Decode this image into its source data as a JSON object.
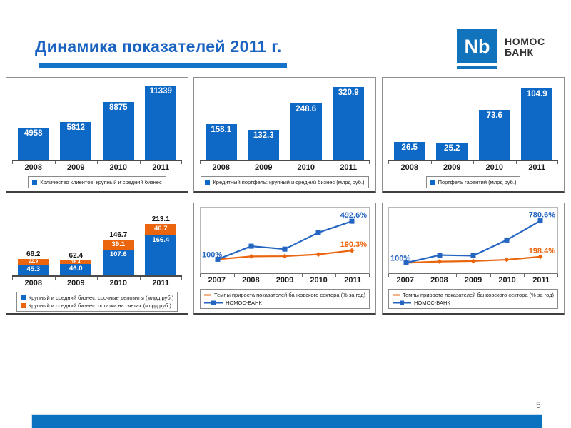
{
  "slide": {
    "title": "Динамика показателей 2011 г.",
    "page_number": "5",
    "logo": {
      "monogram": "Nb",
      "bank_name_line1": "НОМОС",
      "bank_name_line2": "БАНК"
    },
    "colors": {
      "series_blue": "#0E68C6",
      "series_orange": "#EA650D",
      "line_blue": "#2465C2",
      "title_blue": "#1A63C0",
      "underline_blue": "#1273C8",
      "footer_blue": "#0A72BE",
      "logo_blue": "#1173BC"
    }
  },
  "chart_data": [
    {
      "type": "bar",
      "categories": [
        "2008",
        "2009",
        "2010",
        "2011"
      ],
      "values": [
        "4958",
        "5812",
        "8875",
        "11339"
      ],
      "legend": [
        {
          "label": "Количество клиентов: крупный и средний бизнес",
          "color": "#0E68C6"
        }
      ],
      "ylim": [
        0,
        12000
      ]
    },
    {
      "type": "bar",
      "categories": [
        "2008",
        "2009",
        "2010",
        "2011"
      ],
      "values": [
        "158.1",
        "132.3",
        "248.6",
        "320.9"
      ],
      "legend": [
        {
          "label": "Кредитный портфель: крупный и средний бизнес (млрд руб.)",
          "color": "#0E68C6"
        }
      ],
      "ylim": [
        0,
        345
      ]
    },
    {
      "type": "bar",
      "categories": [
        "2008",
        "2009",
        "2010",
        "2011"
      ],
      "values": [
        "26.5",
        "25.2",
        "73.6",
        "104.9"
      ],
      "legend": [
        {
          "label": "Портфель гарантий (млрд руб.)",
          "color": "#0E68C6"
        }
      ],
      "ylim": [
        0,
        115
      ]
    },
    {
      "type": "stacked-bar",
      "categories": [
        "2008",
        "2009",
        "2010",
        "2011"
      ],
      "totals": [
        "68.2",
        "62.4",
        "146.7",
        "213.1"
      ],
      "series": [
        {
          "name": "Крупный и средний бизнес: срочные депозиты (млрд руб.)",
          "color": "#0E68C6",
          "values": [
            "45.3",
            "46.0",
            "107.6",
            "166.4"
          ]
        },
        {
          "name": "Крупный и средний бизнес: остатки на счетах (млрд руб.)",
          "color": "#EA650D",
          "values": [
            "22.9",
            "16.4",
            "39.1",
            "46.7"
          ]
        }
      ],
      "ylim": [
        0,
        230
      ]
    },
    {
      "type": "line",
      "x": [
        "2007",
        "2008",
        "2009",
        "2010",
        "2011"
      ],
      "start_label": "100%",
      "series": [
        {
          "name": "Темпы прироста показателей банковского сектора (% за год)",
          "color": "#EA650D",
          "marker": "diamond",
          "values": [
            100,
            130,
            132,
            150,
            190.3
          ],
          "end_label": "190.3%"
        },
        {
          "name": "НОМОС-БАНК",
          "color": "#2465C2",
          "marker": "square",
          "values": [
            100,
            235,
            205,
            375,
            492.6
          ],
          "end_label": "492.6%"
        }
      ],
      "ylim": [
        0,
        560
      ]
    },
    {
      "type": "line",
      "x": [
        "2007",
        "2008",
        "2009",
        "2010",
        "2011"
      ],
      "start_label": "100%",
      "series": [
        {
          "name": "Темпы прироста показателей банковского сектора (% за год)",
          "color": "#EA650D",
          "marker": "diamond",
          "values": [
            100,
            120,
            128,
            150,
            198.4
          ],
          "end_label": "198.4%"
        },
        {
          "name": "НОМОС-БАНК",
          "color": "#2465C2",
          "marker": "square",
          "values": [
            100,
            225,
            215,
            470,
            780.6
          ],
          "end_label": "780.6%"
        }
      ],
      "ylim": [
        0,
        880
      ]
    }
  ]
}
